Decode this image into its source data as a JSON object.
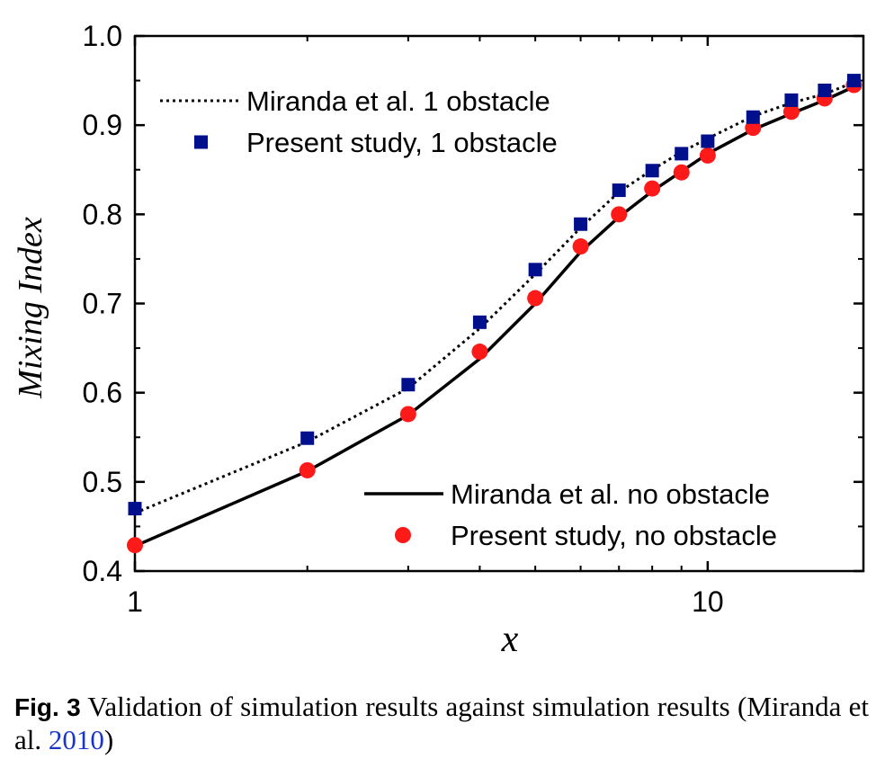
{
  "chart_data": {
    "type": "line",
    "xlabel": "x",
    "ylabel": "Mixing Index",
    "x_scale": "log",
    "xlim": [
      1,
      18.7
    ],
    "ylim": [
      0.4,
      1.0
    ],
    "x_ticks": [
      "1",
      "10"
    ],
    "y_ticks": [
      "0.4",
      "0.5",
      "0.6",
      "0.7",
      "0.8",
      "0.9",
      "1.0"
    ],
    "grid": false,
    "legends": [
      {
        "placement": "top-left",
        "entries": [
          {
            "series": 0,
            "label": "Miranda et al. 1 obstacle"
          },
          {
            "series": 1,
            "label": "Present study, 1 obstacle"
          }
        ]
      },
      {
        "placement": "bottom-right",
        "entries": [
          {
            "series": 2,
            "label": "Miranda et al. no obstacle"
          },
          {
            "series": 3,
            "label": "Present study, no obstacle"
          }
        ]
      }
    ],
    "series": [
      {
        "name": "Miranda et al. 1 obstacle",
        "style": "dotted-line",
        "color": "#000000",
        "x": [
          1,
          2,
          3,
          4,
          5,
          6,
          7,
          8,
          9,
          10,
          12,
          14,
          16,
          18
        ],
        "y": [
          0.465,
          0.545,
          0.605,
          0.672,
          0.733,
          0.785,
          0.825,
          0.85,
          0.87,
          0.885,
          0.91,
          0.925,
          0.935,
          0.948
        ]
      },
      {
        "name": "Present study, 1 obstacle",
        "style": "square-marker",
        "color": "#000f8c",
        "x": [
          1,
          2,
          3,
          4,
          5,
          6,
          7,
          8,
          9,
          10,
          12,
          14,
          16,
          18
        ],
        "y": [
          0.47,
          0.549,
          0.609,
          0.679,
          0.738,
          0.789,
          0.827,
          0.849,
          0.868,
          0.882,
          0.909,
          0.928,
          0.939,
          0.95
        ]
      },
      {
        "name": "Miranda et al. no obstacle",
        "style": "solid-line",
        "color": "#000000",
        "x": [
          1,
          2,
          3,
          4,
          5,
          6,
          7,
          8,
          9,
          10,
          12,
          14,
          16,
          18
        ],
        "y": [
          0.428,
          0.512,
          0.575,
          0.638,
          0.7,
          0.758,
          0.797,
          0.826,
          0.848,
          0.868,
          0.895,
          0.913,
          0.928,
          0.943
        ]
      },
      {
        "name": "Present study, no obstacle",
        "style": "circle-marker",
        "color": "#ff1a1a",
        "x": [
          1,
          2,
          3,
          4,
          5,
          6,
          7,
          8,
          9,
          10,
          12,
          14,
          16,
          18
        ],
        "y": [
          0.429,
          0.513,
          0.576,
          0.646,
          0.706,
          0.764,
          0.8,
          0.829,
          0.847,
          0.866,
          0.897,
          0.915,
          0.93,
          0.945
        ]
      }
    ]
  },
  "caption": {
    "label": "Fig. 3",
    "text": " Validation of simulation results against simulation results (Miranda et al. ",
    "year": "2010",
    "close": ")"
  }
}
